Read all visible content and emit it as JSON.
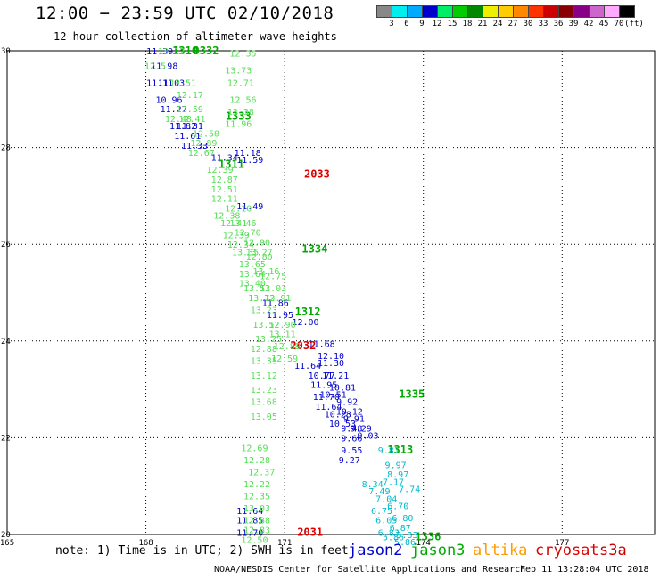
{
  "header": {
    "title": "12:00 − 23:59 UTC 02/10/2018",
    "subtitle": "12 hour collection of altimeter wave heights"
  },
  "colorbar": {
    "colors": [
      "#888888",
      "#00eeee",
      "#00aaff",
      "#0000cc",
      "#00ee66",
      "#00cc00",
      "#008800",
      "#eeee00",
      "#ffcc00",
      "#ff8800",
      "#ff3300",
      "#cc0000",
      "#880000",
      "#880088",
      "#cc66cc",
      "#ffaaff",
      "#000000"
    ],
    "labels": [
      "3",
      "6",
      "9",
      "12",
      "15",
      "18",
      "21",
      "24",
      "27",
      "30",
      "33",
      "36",
      "39",
      "42",
      "45",
      "70",
      "(ft)"
    ]
  },
  "footer": {
    "note": "note: 1) Time is in UTC; 2) SWH is in feet",
    "credit": "NOAA/NESDIS Center for Satellite Applications and Research",
    "timestamp": "Feb 11 13:28:04 UTC 2018"
  },
  "legend": [
    {
      "name": "jason2",
      "color": "#0000cc"
    },
    {
      "name": "jason3",
      "color": "#00aa00"
    },
    {
      "name": "altika",
      "color": "#ff9900"
    },
    {
      "name": "cryosat",
      "color": "#dd0000"
    },
    {
      "name": "s3a",
      "color": "#cc0000"
    }
  ],
  "chart_data": {
    "type": "scatter",
    "title": "12:00 − 23:59 UTC 02/10/2018",
    "xlim": [
      165,
      179
    ],
    "ylim": [
      20,
      30
    ],
    "x_ticks": [
      "165",
      "168",
      "171",
      "174",
      "177"
    ],
    "y_ticks": [
      "20",
      "22",
      "24",
      "26",
      "28",
      "30"
    ],
    "grid": true,
    "series": [
      {
        "name": "jason2",
        "color": "#0000cc",
        "points": [
          [
            168.3,
            30.0,
            "11.39"
          ],
          [
            168.4,
            29.7,
            "11.98"
          ],
          [
            168.3,
            29.35,
            "11.11"
          ],
          [
            168.55,
            29.35,
            "11.03"
          ],
          [
            168.5,
            29.0,
            "10.96"
          ],
          [
            168.6,
            28.8,
            "11.27"
          ],
          [
            168.8,
            28.45,
            "11.82"
          ],
          [
            168.95,
            28.45,
            "11.31"
          ],
          [
            168.9,
            28.25,
            "11.61"
          ],
          [
            169.05,
            28.05,
            "11.33"
          ],
          [
            170.2,
            27.9,
            "11.18"
          ],
          [
            169.7,
            27.8,
            "11.34"
          ],
          [
            170.25,
            27.75,
            "11.59"
          ],
          [
            170.25,
            26.8,
            "11.49"
          ],
          [
            170.8,
            24.8,
            "11.86"
          ],
          [
            170.9,
            24.55,
            "11.95"
          ],
          [
            171.45,
            24.4,
            "12.00"
          ],
          [
            171.8,
            23.95,
            "11.68"
          ],
          [
            172.0,
            23.7,
            "12.10"
          ],
          [
            171.5,
            23.5,
            "11.64"
          ],
          [
            172.0,
            23.55,
            "11.30"
          ],
          [
            171.8,
            23.3,
            "10.77"
          ],
          [
            172.1,
            23.3,
            "11.21"
          ],
          [
            172.25,
            23.05,
            "10.81"
          ],
          [
            171.85,
            23.1,
            "11.95"
          ],
          [
            172.05,
            22.9,
            "10.51"
          ],
          [
            171.9,
            22.85,
            "11.70"
          ],
          [
            172.35,
            22.75,
            "9.92"
          ],
          [
            171.95,
            22.65,
            "11.64"
          ],
          [
            172.4,
            22.55,
            "10.12"
          ],
          [
            172.15,
            22.5,
            "10.28"
          ],
          [
            172.5,
            22.4,
            "9.91"
          ],
          [
            172.25,
            22.3,
            "10.53"
          ],
          [
            172.45,
            22.2,
            "9.48"
          ],
          [
            172.65,
            22.2,
            "9.29"
          ],
          [
            172.8,
            22.05,
            "9.03"
          ],
          [
            172.45,
            22.0,
            "9.66"
          ],
          [
            172.45,
            21.75,
            "9.55"
          ],
          [
            172.4,
            21.55,
            "9.27"
          ],
          [
            170.25,
            20.5,
            "11.64"
          ],
          [
            170.25,
            20.3,
            "11.85"
          ],
          [
            170.25,
            20.05,
            "11.70"
          ]
        ]
      },
      {
        "name": "jason3",
        "color": "#00aa00",
        "points": [
          [
            168.85,
            30.0,
            "1310"
          ],
          [
            169.3,
            30.0,
            "0332"
          ],
          [
            171.65,
            25.9,
            "1334"
          ],
          [
            171.5,
            24.6,
            "1312"
          ],
          [
            173.75,
            22.9,
            "1335"
          ],
          [
            173.5,
            21.75,
            "1313"
          ],
          [
            174.1,
            19.95,
            "1336"
          ],
          [
            170.0,
            28.65,
            "1333"
          ],
          [
            169.85,
            27.65,
            "1311"
          ]
        ]
      },
      {
        "name": "cryosat",
        "color": "#dd0000",
        "points": [
          [
            171.7,
            27.45,
            "2033"
          ],
          [
            171.4,
            23.9,
            "2032"
          ],
          [
            171.55,
            20.05,
            "2031"
          ]
        ]
      },
      {
        "name": "swh-light",
        "color": "#55dd55",
        "points": [
          [
            168.2,
            29.7,
            "12.5"
          ],
          [
            168.55,
            30.0,
            "13.12"
          ],
          [
            170.1,
            29.95,
            "12.35"
          ],
          [
            170.0,
            29.6,
            "13.73"
          ],
          [
            168.8,
            29.35,
            "12.51"
          ],
          [
            170.05,
            29.35,
            "12.71"
          ],
          [
            168.95,
            29.1,
            "12.17"
          ],
          [
            170.1,
            29.0,
            "12.56"
          ],
          [
            168.95,
            28.8,
            "12.59"
          ],
          [
            170.05,
            28.75,
            "13.38"
          ],
          [
            168.7,
            28.6,
            "12.48"
          ],
          [
            169.0,
            28.6,
            "12.41"
          ],
          [
            170.0,
            28.5,
            "11.96"
          ],
          [
            169.3,
            28.3,
            "12.50"
          ],
          [
            169.25,
            28.1,
            "12.89"
          ],
          [
            169.2,
            27.9,
            "12.67"
          ],
          [
            169.6,
            27.55,
            "12.39"
          ],
          [
            169.7,
            27.35,
            "12.87"
          ],
          [
            169.7,
            27.15,
            "12.51"
          ],
          [
            169.7,
            26.95,
            "12.11"
          ],
          [
            170.0,
            26.75,
            "12.10"
          ],
          [
            169.75,
            26.6,
            "12.38"
          ],
          [
            169.9,
            26.45,
            "12.41"
          ],
          [
            170.1,
            26.45,
            "13.46"
          ],
          [
            169.95,
            26.2,
            "12.39"
          ],
          [
            170.2,
            26.25,
            "12.70"
          ],
          [
            170.05,
            26.0,
            "12.34"
          ],
          [
            170.4,
            26.05,
            "12.90"
          ],
          [
            170.15,
            25.85,
            "13.35"
          ],
          [
            170.45,
            25.85,
            "13.27"
          ],
          [
            170.3,
            25.6,
            "13.65"
          ],
          [
            170.45,
            25.75,
            "12.80"
          ],
          [
            170.3,
            25.4,
            "13.64"
          ],
          [
            170.6,
            25.45,
            "13.16"
          ],
          [
            170.3,
            25.2,
            "13.40"
          ],
          [
            170.75,
            25.35,
            "12.75"
          ],
          [
            170.4,
            25.1,
            "13.51"
          ],
          [
            170.75,
            25.1,
            "13.03"
          ],
          [
            170.5,
            24.9,
            "13.72"
          ],
          [
            170.85,
            24.9,
            "13.91"
          ],
          [
            170.55,
            24.65,
            "13.23"
          ],
          [
            170.6,
            24.35,
            "13.52"
          ],
          [
            170.95,
            24.35,
            "12.90"
          ],
          [
            170.65,
            24.05,
            "13.25"
          ],
          [
            170.95,
            24.15,
            "13.11"
          ],
          [
            170.55,
            23.85,
            "12.88"
          ],
          [
            171.05,
            23.9,
            "12.89"
          ],
          [
            170.55,
            23.6,
            "13.35"
          ],
          [
            171.0,
            23.65,
            "12.59"
          ],
          [
            170.55,
            23.3,
            "13.12"
          ],
          [
            170.55,
            23.0,
            "13.23"
          ],
          [
            170.55,
            22.75,
            "13.68"
          ],
          [
            170.55,
            22.45,
            "13.05"
          ],
          [
            170.35,
            21.8,
            "12.69"
          ],
          [
            170.4,
            21.55,
            "12.28"
          ],
          [
            170.5,
            21.3,
            "12.37"
          ],
          [
            170.4,
            21.05,
            "12.22"
          ],
          [
            170.4,
            20.8,
            "12.35"
          ],
          [
            170.4,
            20.55,
            "13.03"
          ],
          [
            170.4,
            20.3,
            "12.88"
          ],
          [
            170.4,
            20.1,
            "12.83"
          ],
          [
            170.35,
            19.9,
            "12.50"
          ]
        ]
      },
      {
        "name": "swh-cyan",
        "color": "#00bbcc",
        "points": [
          [
            173.25,
            21.75,
            "9.81"
          ],
          [
            173.4,
            21.45,
            "9.97"
          ],
          [
            173.45,
            21.25,
            "8.97"
          ],
          [
            173.35,
            21.1,
            "7.17"
          ],
          [
            173.7,
            20.95,
            "7.74"
          ],
          [
            172.9,
            21.05,
            "8.34"
          ],
          [
            173.05,
            20.9,
            "7.49"
          ],
          [
            173.2,
            20.75,
            "7.04"
          ],
          [
            173.45,
            20.6,
            "6.70"
          ],
          [
            173.1,
            20.5,
            "6.75"
          ],
          [
            173.55,
            20.35,
            "6.80"
          ],
          [
            173.2,
            20.3,
            "6.05"
          ],
          [
            173.5,
            20.15,
            "6.87"
          ],
          [
            173.25,
            20.05,
            "6.83"
          ],
          [
            173.65,
            20.0,
            "5.33"
          ],
          [
            173.35,
            19.95,
            "5.86"
          ],
          [
            173.6,
            19.85,
            "5.86"
          ]
        ]
      }
    ]
  }
}
